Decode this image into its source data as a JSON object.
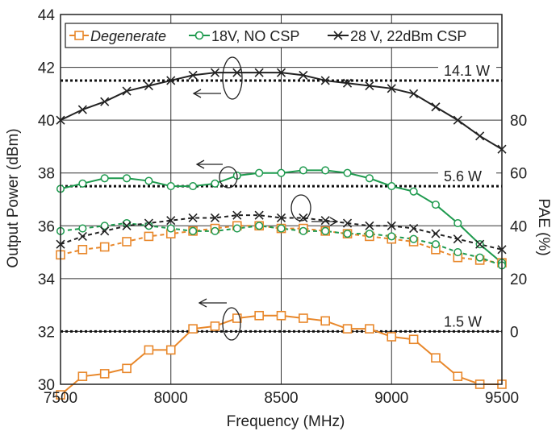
{
  "chart_data": {
    "type": "line",
    "xlabel": "Frequency (MHz)",
    "ylabel": "Output Power (dBm)",
    "y2label": "PAE (%)",
    "xlim": [
      7500,
      9500
    ],
    "ylim": [
      30,
      44
    ],
    "y2lim": [
      0,
      80
    ],
    "x_ticks": [
      "7500",
      "8000",
      "8500",
      "9000",
      "9500"
    ],
    "y_ticks": [
      "30",
      "32",
      "34",
      "36",
      "38",
      "40",
      "42",
      "44"
    ],
    "y2_ticks": [
      "0",
      "20",
      "40",
      "60",
      "80"
    ],
    "grid": true,
    "legend_position": "top",
    "x": [
      7500,
      7600,
      7700,
      7800,
      7900,
      8000,
      8100,
      8200,
      8300,
      8400,
      8500,
      8600,
      8700,
      8800,
      8900,
      9000,
      9100,
      9200,
      9300,
      9400,
      9500
    ],
    "series": [
      {
        "name": "Degenerate",
        "color": "#E8872A",
        "marker": "square",
        "power_dbm": [
          29.6,
          30.3,
          30.4,
          30.6,
          31.3,
          31.3,
          32.1,
          32.2,
          32.5,
          32.6,
          32.6,
          32.5,
          32.4,
          32.1,
          32.1,
          31.8,
          31.7,
          31.0,
          30.3,
          30.0,
          30.0
        ],
        "pae_pct": [
          29,
          31,
          32,
          34,
          36,
          37,
          38,
          39,
          40,
          40,
          39,
          39,
          38,
          37,
          36,
          35,
          34,
          31,
          28,
          27,
          26
        ]
      },
      {
        "name": "18V, NO CSP",
        "color": "#1E9A4E",
        "marker": "circle",
        "power_dbm": [
          37.4,
          37.6,
          37.8,
          37.8,
          37.7,
          37.5,
          37.5,
          37.6,
          37.9,
          38.0,
          38.0,
          38.1,
          38.1,
          38.0,
          37.8,
          37.5,
          37.3,
          36.8,
          36.1,
          35.3,
          34.6
        ],
        "pae_pct": [
          38,
          39,
          40,
          41,
          40,
          39,
          38,
          38,
          39,
          40,
          39,
          38,
          38,
          37,
          37,
          36,
          35,
          33,
          30,
          28,
          25
        ]
      },
      {
        "name": "28 V, 22dBm CSP",
        "color": "#222222",
        "marker": "x",
        "power_dbm": [
          40.0,
          40.4,
          40.7,
          41.1,
          41.3,
          41.5,
          41.7,
          41.8,
          41.8,
          41.8,
          41.8,
          41.7,
          41.5,
          41.4,
          41.3,
          41.2,
          41.0,
          40.5,
          40.0,
          39.4,
          38.9
        ],
        "pae_pct": [
          33,
          36,
          38,
          40,
          41,
          42,
          43,
          43,
          44,
          44,
          43,
          43,
          42,
          41,
          40,
          40,
          39,
          37,
          35,
          33,
          31
        ]
      }
    ],
    "reference_lines": [
      {
        "label": "14.1 W",
        "y_dbm": 41.5
      },
      {
        "label": "5.6 W",
        "y_dbm": 37.5
      },
      {
        "label": "1.5 W",
        "y_dbm": 32.0
      }
    ]
  }
}
